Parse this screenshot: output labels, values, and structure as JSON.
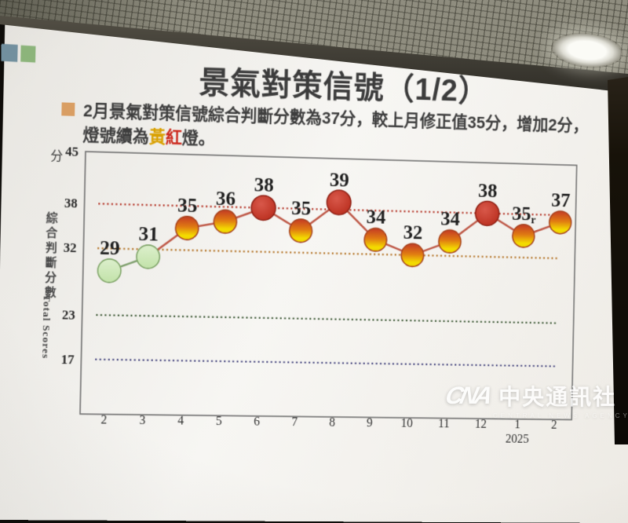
{
  "slide": {
    "title": "景氣對策信號（1/2）",
    "bullet_color": "#d99e63",
    "deco_squares": [
      {
        "name": "blue-square",
        "color": "#72909f"
      },
      {
        "name": "green-square",
        "color": "#8cb57b"
      }
    ],
    "subtitle_line1": "2月景氣對策信號綜合判斷分數為37分，較上月修正值35分，增加2分，",
    "subtitle_line2": {
      "pre": "燈號續為",
      "yellow": "黃",
      "red": "紅",
      "post": "燈。",
      "yellow_color": "#d9a000",
      "red_color": "#cc2a1e"
    }
  },
  "chart_data": {
    "type": "line",
    "unit_label": "分",
    "ylabel_zh": "綜合判斷分數",
    "ylabel_en": "Total Scores",
    "categories": [
      "2",
      "3",
      "4",
      "5",
      "6",
      "7",
      "8",
      "9",
      "10",
      "11",
      "12",
      "1",
      "2"
    ],
    "year_label": {
      "index": 11,
      "text": "2025"
    },
    "values": [
      29,
      31,
      35,
      36,
      38,
      35,
      39,
      34,
      32,
      34,
      38,
      35,
      37
    ],
    "labels": [
      "29",
      "31",
      "35",
      "36",
      "38",
      "35",
      "39",
      "34",
      "32",
      "34",
      "38",
      "35",
      "37"
    ],
    "revised_index": 11,
    "revised_suffix": "r",
    "lights": [
      "green",
      "green",
      "yellow-red",
      "yellow-red",
      "red",
      "yellow-red",
      "red",
      "yellow-red",
      "yellow-red",
      "yellow-red",
      "red",
      "yellow-red",
      "yellow-red"
    ],
    "y_ticks": [
      45,
      38,
      32,
      23,
      17
    ],
    "ylim": [
      9.6,
      45
    ],
    "grid": false,
    "legend": "none",
    "thresholds": [
      {
        "value": 38,
        "color": "#b5372a"
      },
      {
        "value": 32,
        "color": "#b5762a"
      },
      {
        "value": 23,
        "color": "#46603f"
      },
      {
        "value": 17,
        "color": "#3c3c78"
      }
    ],
    "light_styles": {
      "green": {
        "stroke": "#7fa468"
      },
      "yellow-red": {
        "stroke": "#a8431f"
      },
      "red": {
        "stroke": "#8f2014"
      }
    },
    "segment_green": "#7e9f6d",
    "segment_red": "#bf5a49",
    "axis_color": "#6f6f6f",
    "tick_color": "#2a2a2a",
    "label_color": "#1f1f1f"
  },
  "watermark": {
    "logo": "CNA",
    "text": "中央通訊社",
    "subtext": "CENTRAL NEWS AGENCY"
  }
}
